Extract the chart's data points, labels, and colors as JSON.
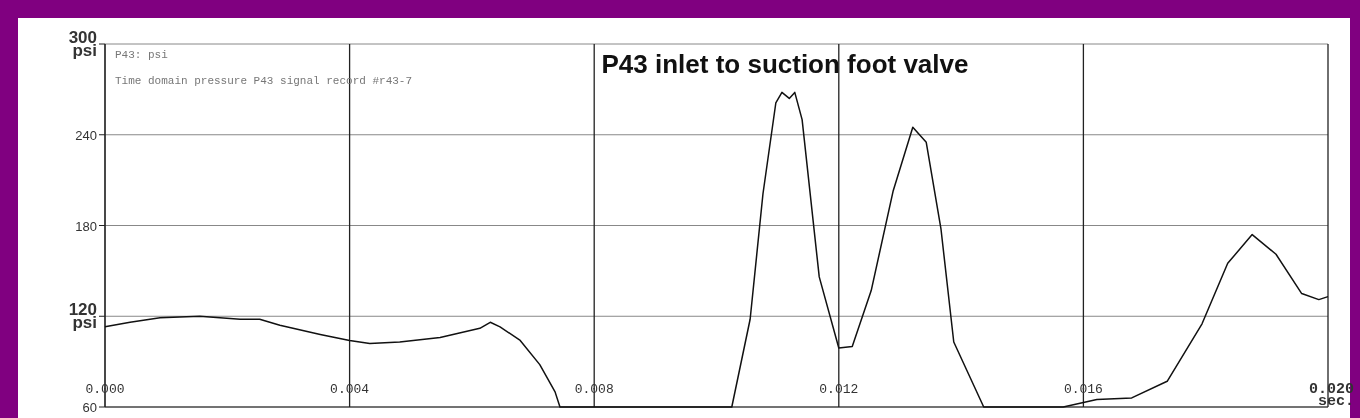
{
  "chart_data": {
    "type": "line",
    "title": "P43 inlet to suction foot valve",
    "annotations": [
      "P43: psi",
      "Time domain pressure P43 signal record #r43-7"
    ],
    "x": [
      0,
      0.00041,
      0.0009,
      0.00155,
      0.00221,
      0.00253,
      0.00286,
      0.00352,
      0.004,
      0.00433,
      0.00482,
      0.00548,
      0.00613,
      0.0063,
      0.00646,
      0.00679,
      0.00711,
      0.00736,
      0.00744,
      0.0081,
      0.00973,
      0.01025,
      0.01055,
      0.01076,
      0.01097,
      0.01107,
      0.01119,
      0.01128,
      0.0114,
      0.01168,
      0.012,
      0.01222,
      0.01253,
      0.01289,
      0.01321,
      0.01343,
      0.01367,
      0.01388,
      0.01437,
      0.01567,
      0.01622,
      0.01679,
      0.01737,
      0.01794,
      0.01836,
      0.01876,
      0.01915,
      0.01957,
      0.01985,
      0.02
    ],
    "series": [
      {
        "color": "#111111",
        "values": [
          113,
          116,
          119,
          120,
          118,
          118,
          114,
          108,
          104,
          102,
          103,
          106,
          112,
          116,
          113,
          104,
          88,
          70,
          60,
          60,
          60,
          60,
          118,
          201,
          261,
          268,
          264,
          268,
          250,
          146,
          99,
          100,
          137,
          203,
          245,
          235,
          178,
          103,
          60,
          60,
          65,
          66,
          77,
          115,
          155,
          174,
          161,
          135,
          131,
          133
        ]
      }
    ],
    "xlim": [
      0,
      0.02
    ],
    "xticks": [
      {
        "value": 0,
        "label": "0.000"
      },
      {
        "value": 0.004,
        "label": "0.004"
      },
      {
        "value": 0.008,
        "label": "0.008"
      },
      {
        "value": 0.012,
        "label": "0.012"
      },
      {
        "value": 0.016,
        "label": "0.016"
      },
      {
        "value": 0.02,
        "label": "0.020 sec."
      }
    ],
    "ylim": [
      60,
      300
    ],
    "yticks": [
      {
        "value": 60,
        "label": "60"
      },
      {
        "value": 120,
        "label": "120 psi"
      },
      180,
      240,
      {
        "value": 300,
        "label": "300 psi"
      }
    ],
    "grid": true,
    "marker": "none",
    "line_style": "solid"
  }
}
